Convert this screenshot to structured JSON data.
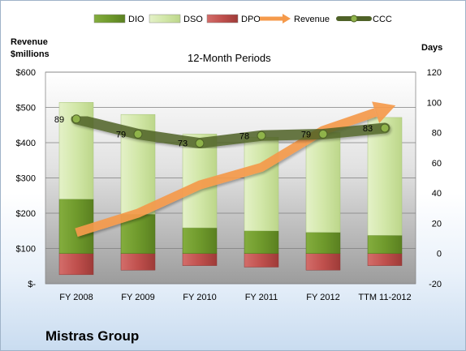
{
  "company": "Mistras Group",
  "chart_data": {
    "type": "bar",
    "title": "12-Month Periods",
    "left_axis_label": "Revenue\n$millions",
    "right_axis_label": "Days",
    "categories": [
      "FY 2008",
      "FY 2009",
      "FY 2010",
      "FY 2011",
      "FY 2012",
      "TTM 11-2012"
    ],
    "left_ylim": [
      0,
      600
    ],
    "left_ticks": [
      "$-",
      "$100",
      "$200",
      "$300",
      "$400",
      "$500",
      "$600"
    ],
    "right_ylim": [
      -20,
      120
    ],
    "right_ticks": [
      "-20",
      "0",
      "20",
      "40",
      "60",
      "80",
      "100",
      "120"
    ],
    "series": [
      {
        "name": "DIO",
        "axis": "right",
        "values": [
          36,
          26,
          17,
          15,
          14,
          12
        ],
        "color": "#6f9a2c"
      },
      {
        "name": "DSO",
        "axis": "right",
        "values": [
          64,
          66,
          62,
          62,
          66,
          78
        ],
        "color": "#d6e9b1"
      },
      {
        "name": "DPO",
        "axis": "right",
        "values": [
          -14,
          -11,
          -8,
          -9,
          -11,
          -8
        ],
        "color": "#c0504d"
      },
      {
        "name": "Revenue",
        "axis": "left",
        "values": [
          145,
          200,
          280,
          330,
          435,
          495
        ],
        "color": "#f59a4b"
      },
      {
        "name": "CCC",
        "axis": "right",
        "values": [
          89,
          79,
          73,
          78,
          79,
          83
        ],
        "color": "#4f6228"
      }
    ],
    "ccc_labels": [
      "89",
      "79",
      "73",
      "78",
      "79",
      "83"
    ],
    "grid": true,
    "legend_position": "top"
  }
}
